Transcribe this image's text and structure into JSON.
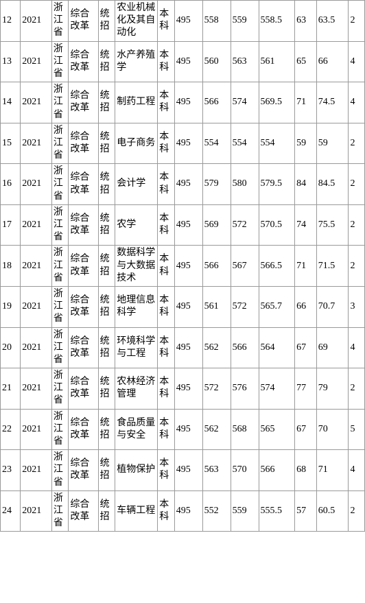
{
  "table": {
    "background_color": "#ffffff",
    "border_color": "#999999",
    "text_color": "#000000",
    "font_size": 14,
    "rows": [
      {
        "idx": "12",
        "year": "2021",
        "prov": "浙江省",
        "type": "综合改革",
        "rec": "统招",
        "major": "农业机械化及其自动化",
        "level": "本科",
        "n1": "495",
        "n2": "558",
        "n3": "559",
        "n4": "558.5",
        "n5": "63",
        "n6": "63.5",
        "n7": "2"
      },
      {
        "idx": "13",
        "year": "2021",
        "prov": "浙江省",
        "type": "综合改革",
        "rec": "统招",
        "major": "水产养殖学",
        "level": "本科",
        "n1": "495",
        "n2": "560",
        "n3": "563",
        "n4": "561",
        "n5": "65",
        "n6": "66",
        "n7": "4"
      },
      {
        "idx": "14",
        "year": "2021",
        "prov": "浙江省",
        "type": "综合改革",
        "rec": "统招",
        "major": "制药工程",
        "level": "本科",
        "n1": "495",
        "n2": "566",
        "n3": "574",
        "n4": "569.5",
        "n5": "71",
        "n6": "74.5",
        "n7": "4"
      },
      {
        "idx": "15",
        "year": "2021",
        "prov": "浙江省",
        "type": "综合改革",
        "rec": "统招",
        "major": "电子商务",
        "level": "本科",
        "n1": "495",
        "n2": "554",
        "n3": "554",
        "n4": "554",
        "n5": "59",
        "n6": "59",
        "n7": "2"
      },
      {
        "idx": "16",
        "year": "2021",
        "prov": "浙江省",
        "type": "综合改革",
        "rec": "统招",
        "major": "会计学",
        "level": "本科",
        "n1": "495",
        "n2": "579",
        "n3": "580",
        "n4": "579.5",
        "n5": "84",
        "n6": "84.5",
        "n7": "2"
      },
      {
        "idx": "17",
        "year": "2021",
        "prov": "浙江省",
        "type": "综合改革",
        "rec": "统招",
        "major": "农学",
        "level": "本科",
        "n1": "495",
        "n2": "569",
        "n3": "572",
        "n4": "570.5",
        "n5": "74",
        "n6": "75.5",
        "n7": "2"
      },
      {
        "idx": "18",
        "year": "2021",
        "prov": "浙江省",
        "type": "综合改革",
        "rec": "统招",
        "major": "数据科学与大数据技术",
        "level": "本科",
        "n1": "495",
        "n2": "566",
        "n3": "567",
        "n4": "566.5",
        "n5": "71",
        "n6": "71.5",
        "n7": "2"
      },
      {
        "idx": "19",
        "year": "2021",
        "prov": "浙江省",
        "type": "综合改革",
        "rec": "统招",
        "major": "地理信息科学",
        "level": "本科",
        "n1": "495",
        "n2": "561",
        "n3": "572",
        "n4": "565.7",
        "n5": "66",
        "n6": "70.7",
        "n7": "3"
      },
      {
        "idx": "20",
        "year": "2021",
        "prov": "浙江省",
        "type": "综合改革",
        "rec": "统招",
        "major": "环境科学与工程",
        "level": "本科",
        "n1": "495",
        "n2": "562",
        "n3": "566",
        "n4": "564",
        "n5": "67",
        "n6": "69",
        "n7": "4"
      },
      {
        "idx": "21",
        "year": "2021",
        "prov": "浙江省",
        "type": "综合改革",
        "rec": "统招",
        "major": "农林经济管理",
        "level": "本科",
        "n1": "495",
        "n2": "572",
        "n3": "576",
        "n4": "574",
        "n5": "77",
        "n6": "79",
        "n7": "2"
      },
      {
        "idx": "22",
        "year": "2021",
        "prov": "浙江省",
        "type": "综合改革",
        "rec": "统招",
        "major": "食品质量与安全",
        "level": "本科",
        "n1": "495",
        "n2": "562",
        "n3": "568",
        "n4": "565",
        "n5": "67",
        "n6": "70",
        "n7": "5"
      },
      {
        "idx": "23",
        "year": "2021",
        "prov": "浙江省",
        "type": "综合改革",
        "rec": "统招",
        "major": "植物保护",
        "level": "本科",
        "n1": "495",
        "n2": "563",
        "n3": "570",
        "n4": "566",
        "n5": "68",
        "n6": "71",
        "n7": "4"
      },
      {
        "idx": "24",
        "year": "2021",
        "prov": "浙江省",
        "type": "综合改革",
        "rec": "统招",
        "major": "车辆工程",
        "level": "本科",
        "n1": "495",
        "n2": "552",
        "n3": "559",
        "n4": "555.5",
        "n5": "57",
        "n6": "60.5",
        "n7": "2"
      }
    ]
  }
}
